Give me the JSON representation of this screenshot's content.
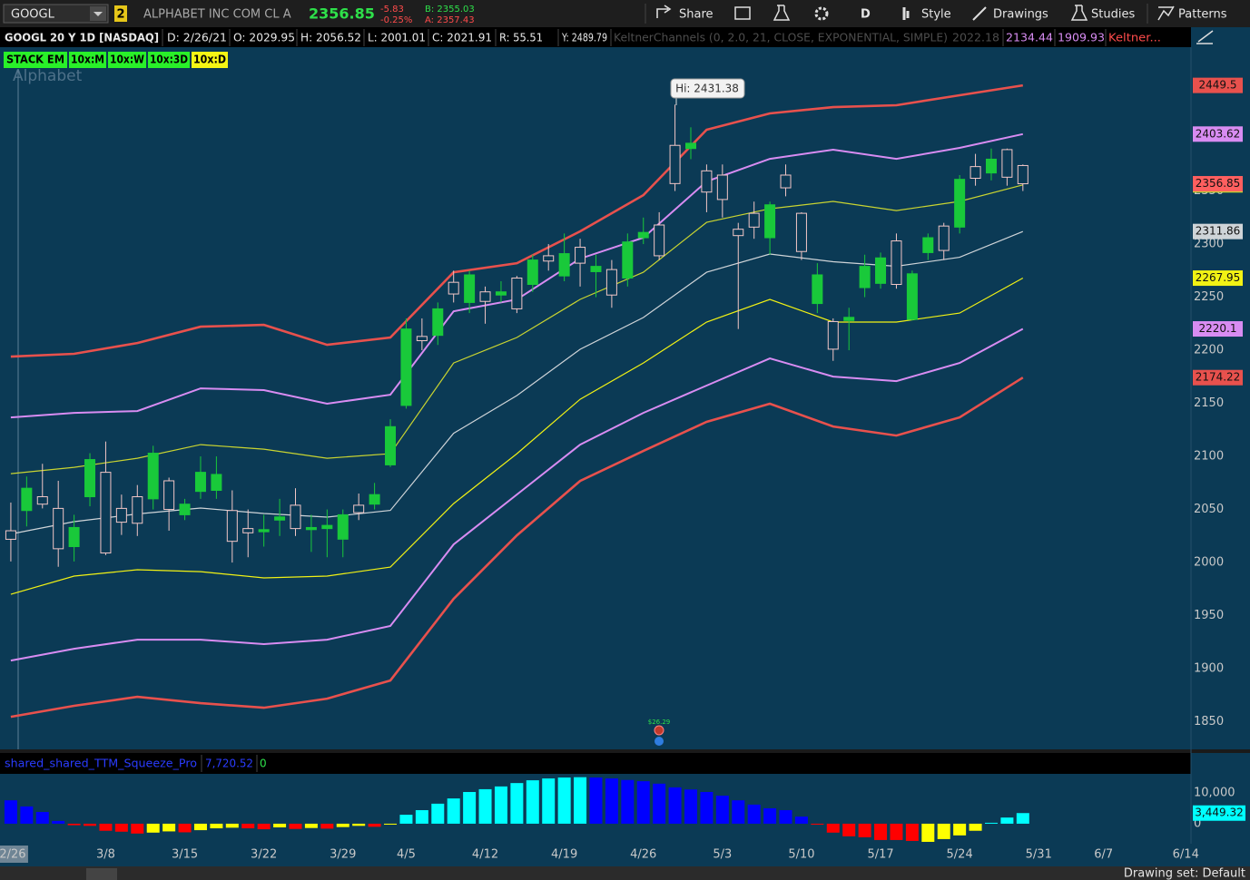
{
  "toolbar": {
    "symbol": "GOOGL",
    "link": "2",
    "company": "ALPHABET INC COM CL A",
    "last": "2356.85",
    "change": "-5.83",
    "change_pct": "-0.25%",
    "bid": "B: 2355.03",
    "ask": "A: 2357.43",
    "buttons": [
      "Share",
      "D",
      "Style",
      "Drawings",
      "Studies",
      "Patterns"
    ]
  },
  "status_bar": {
    "text": "Drawing set: Default"
  },
  "chart_data": [
    {
      "type": "candlestick",
      "title": "GOOGL 20 Y 1D [NASDAQ]",
      "info": [
        "D: 2/26/21",
        "O: 2029.95",
        "H: 2056.52",
        "L: 2001.01",
        "C: 2021.91",
        "R: 55.51",
        "Y: 2489.79"
      ],
      "study": "KeltnerChannels (0, 2.0, 21, CLOSE, EXPONENTIAL, SIMPLE)",
      "study_values": [
        "2022.18",
        "2134.44",
        "1909.93",
        "Keltner..."
      ],
      "study_buttons": [
        "STACK EM",
        "10x:M",
        "10x:W",
        "10x:3D",
        "10x:D"
      ],
      "watermark": "Alphabet",
      "annotation": "Hi: 2431.38",
      "event_label": "$26.29",
      "up_color": "#19c93a",
      "down_color": "#f2c6c6",
      "last_color": "#ff5f5f",
      "x": [
        0,
        1,
        2,
        3,
        4,
        5,
        6,
        7,
        8,
        9,
        10,
        11,
        12,
        13,
        14,
        15,
        16,
        17,
        18,
        19,
        20,
        21,
        22,
        23,
        24,
        25,
        26,
        27,
        28,
        29,
        30,
        31,
        32,
        33,
        34,
        35,
        36,
        37,
        38,
        39,
        40,
        41,
        42,
        43,
        44,
        45,
        46,
        47,
        48,
        49,
        50,
        51,
        52,
        53,
        54,
        55,
        56,
        57,
        58,
        59,
        60,
        61,
        62,
        63,
        64
      ],
      "open": [
        2029.95,
        2049,
        2062,
        2051,
        2015,
        2062,
        2085,
        2051,
        2062,
        2060,
        2077,
        2045,
        2067,
        2068,
        2049,
        2032,
        2029,
        2040,
        2054,
        2031,
        2032,
        2022,
        2054,
        2055,
        2092,
        2148,
        2213,
        2214,
        2264,
        2245,
        2255,
        2252,
        2268,
        2262,
        2289,
        2270,
        2297,
        2274,
        2276,
        2268,
        2306,
        2318,
        2393,
        2390,
        2369,
        2365,
        2314,
        2329,
        2306,
        2365,
        2329,
        2244,
        2227,
        2228,
        2259,
        2263,
        2303,
        2229,
        2292,
        2317,
        2316,
        2373,
        2367,
        2389,
        2374
      ],
      "high": [
        2056.52,
        2081,
        2093,
        2077,
        2045,
        2103,
        2114,
        2064,
        2073,
        2110,
        2080,
        2060,
        2100,
        2100,
        2068,
        2050,
        2045,
        2060,
        2070,
        2045,
        2050,
        2050,
        2065,
        2075,
        2135,
        2230,
        2230,
        2245,
        2275,
        2275,
        2260,
        2265,
        2270,
        2290,
        2300,
        2310,
        2305,
        2290,
        2285,
        2310,
        2325,
        2330,
        2431.38,
        2410,
        2375,
        2375,
        2320,
        2340,
        2340,
        2375,
        2330,
        2282,
        2230,
        2240,
        2290,
        2292,
        2310,
        2275,
        2310,
        2320,
        2365,
        2385,
        2390,
        2390,
        2375
      ],
      "low": [
        2001.01,
        2034,
        2051,
        1996,
        2001,
        2053,
        2007,
        2026,
        2025,
        2050,
        2030,
        2040,
        2060,
        2060,
        2000,
        2005,
        2015,
        2025,
        2025,
        2010,
        2005,
        2005,
        2040,
        2050,
        2090,
        2145,
        2200,
        2205,
        2245,
        2235,
        2225,
        2245,
        2235,
        2255,
        2275,
        2265,
        2260,
        2250,
        2240,
        2260,
        2300,
        2285,
        2350,
        2380,
        2330,
        2325,
        2220,
        2305,
        2290,
        2345,
        2285,
        2235,
        2190,
        2200,
        2250,
        2258,
        2258,
        2228,
        2285,
        2285,
        2310,
        2355,
        2360,
        2355,
        2350
      ],
      "close": [
        2021.91,
        2070,
        2055,
        2013,
        2033,
        2097,
        2009,
        2038,
        2037,
        2103,
        2050,
        2055,
        2085,
        2083,
        2020,
        2028,
        2031,
        2043,
        2032,
        2033,
        2035,
        2045,
        2047,
        2064,
        2128,
        2220,
        2209,
        2239,
        2253,
        2271,
        2246,
        2255,
        2239,
        2285,
        2284,
        2291,
        2282,
        2279,
        2252,
        2302,
        2311,
        2289,
        2357,
        2395,
        2349,
        2342,
        2308,
        2316,
        2337,
        2353,
        2293,
        2271,
        2201,
        2231,
        2279,
        2287,
        2262,
        2272,
        2306,
        2294,
        2361,
        2362,
        2380,
        2363,
        2356.85
      ],
      "series": [
        {
          "color": "#e8514d",
          "x": [
            0,
            4,
            8,
            12,
            16,
            20,
            24,
            28,
            32,
            36,
            40,
            44,
            48,
            52,
            56,
            60,
            64
          ],
          "values": [
            2194,
            2196.6,
            2206.8,
            2222.2,
            2223.9,
            2205.1,
            2212,
            2273.5,
            2282,
            2312,
            2346.1,
            2407.7,
            2423.1,
            2429,
            2430.8,
            2440.2,
            2449.5
          ]
        },
        {
          "color": "#d88cf2",
          "x": [
            0,
            4,
            8,
            12,
            16,
            20,
            24,
            28,
            32,
            36,
            40,
            44,
            48,
            52,
            56,
            60,
            64
          ],
          "values": [
            2136.7,
            2141,
            2142.7,
            2164.1,
            2162.4,
            2149.6,
            2158.1,
            2236.7,
            2247.8,
            2286.3,
            2306,
            2359,
            2380.3,
            2388.9,
            2380.3,
            2390.6,
            2403.62
          ]
        },
        {
          "color": "#c9d431",
          "x": [
            0,
            4,
            8,
            12,
            16,
            20,
            24,
            28,
            32,
            36,
            40,
            44,
            48,
            52,
            56,
            60,
            64
          ],
          "values": [
            2083.7,
            2089.7,
            2098.3,
            2111.1,
            2106.8,
            2098.3,
            2102.5,
            2188,
            2212,
            2247.9,
            2273.5,
            2320.5,
            2333.3,
            2340.2,
            2331.6,
            2340.2,
            2355.77
          ]
        },
        {
          "color": "#cfd4d8",
          "x": [
            0,
            4,
            8,
            12,
            16,
            20,
            24,
            28,
            32,
            36,
            40,
            44,
            48,
            52,
            56,
            60,
            64
          ],
          "values": [
            2026.9,
            2038.5,
            2045.8,
            2051.3,
            2046.2,
            2042.8,
            2049.1,
            2121.8,
            2157.3,
            2200.9,
            2230.8,
            2273.5,
            2290.6,
            2283.4,
            2279.1,
            2287.6,
            2311.86
          ]
        },
        {
          "color": "#f2f214",
          "x": [
            0,
            4,
            8,
            12,
            16,
            20,
            24,
            28,
            32,
            36,
            40,
            44,
            48,
            52,
            56,
            60,
            64
          ],
          "values": [
            1970.1,
            1987.2,
            1993.2,
            1991.4,
            1985.5,
            1987.2,
            1995.7,
            2055.5,
            2102.5,
            2153.8,
            2188,
            2226.5,
            2247.9,
            2226.5,
            2226.5,
            2235,
            2267.95
          ]
        },
        {
          "color": "#d88cf2",
          "x": [
            0,
            4,
            8,
            12,
            16,
            20,
            24,
            28,
            32,
            36,
            40,
            44,
            48,
            52,
            56,
            60,
            64
          ],
          "values": [
            1907.7,
            1918.8,
            1927.3,
            1927.3,
            1923.1,
            1927.3,
            1940.2,
            2017.1,
            2064.1,
            2111.1,
            2141,
            2166.7,
            2192.3,
            2175.2,
            2170.9,
            2188,
            2220.1
          ]
        },
        {
          "color": "#e8514d",
          "x": [
            0,
            4,
            8,
            12,
            16,
            20,
            24,
            28,
            32,
            36,
            40,
            44,
            48,
            52,
            56,
            60,
            64
          ],
          "values": [
            1854.7,
            1865,
            1873.5,
            1867.5,
            1863.2,
            1871.8,
            1888.9,
            1965.8,
            2025.6,
            2076.9,
            2105.1,
            2132.5,
            2149.6,
            2128.2,
            2119.6,
            2136.7,
            2174.22
          ]
        }
      ],
      "xlim": [
        -0.57,
        74.63
      ],
      "ylim": [
        1824,
        2485.5
      ],
      "yticks": [
        1850,
        1900,
        1950,
        2000,
        2050,
        2100,
        2150,
        2200,
        2250,
        2300,
        2350
      ],
      "xticks": [
        {
          "value": 0,
          "label": "2/26"
        },
        {
          "value": 6,
          "label": "3/8"
        },
        {
          "value": 11,
          "label": "3/15"
        },
        {
          "value": 16,
          "label": "3/22"
        },
        {
          "value": 21,
          "label": "3/29"
        },
        {
          "value": 25,
          "label": "4/5"
        },
        {
          "value": 30,
          "label": "4/12"
        },
        {
          "value": 35,
          "label": "4/19"
        },
        {
          "value": 40,
          "label": "4/26"
        },
        {
          "value": 45,
          "label": "5/3"
        },
        {
          "value": 50,
          "label": "5/10"
        },
        {
          "value": 55,
          "label": "5/17"
        },
        {
          "value": 60,
          "label": "5/24"
        },
        {
          "value": 65,
          "label": "5/31"
        },
        {
          "value": 69.1,
          "label": "6/7"
        },
        {
          "value": 74.3,
          "label": "6/14"
        }
      ]
    },
    {
      "type": "bar",
      "title": "shared_shared_TTM_Squeeze_Pro",
      "header_values": [
        "7,720.52",
        "0"
      ],
      "x": [
        0,
        1,
        2,
        3,
        4,
        5,
        6,
        7,
        8,
        9,
        10,
        11,
        12,
        13,
        14,
        15,
        16,
        17,
        18,
        19,
        20,
        21,
        22,
        23,
        24,
        25,
        26,
        27,
        28,
        29,
        30,
        31,
        32,
        33,
        34,
        35,
        36,
        37,
        38,
        39,
        40,
        41,
        42,
        43,
        44,
        45,
        46,
        47,
        48,
        49,
        50,
        51,
        52,
        53,
        54,
        55,
        56,
        57,
        58,
        59,
        60,
        61,
        62,
        63,
        64
      ],
      "values": [
        7600,
        5600,
        3800,
        900,
        -500,
        -700,
        -2300,
        -2600,
        -3200,
        -2900,
        -2500,
        -2800,
        -2100,
        -1500,
        -1300,
        -1500,
        -1800,
        -1200,
        -1700,
        -1400,
        -1600,
        -1100,
        -700,
        -1000,
        -300,
        2900,
        4400,
        6500,
        8200,
        10300,
        11200,
        12100,
        13200,
        14100,
        14700,
        15000,
        15100,
        15000,
        14700,
        14200,
        13800,
        13000,
        11800,
        11100,
        10300,
        9100,
        7600,
        6200,
        5000,
        4400,
        2300,
        -300,
        -2900,
        -4100,
        -4400,
        -5300,
        -5300,
        -5600,
        -5900,
        -5000,
        -3800,
        -2300,
        300,
        2000,
        3449.32
      ],
      "colors": [
        "#0000ff",
        "#0000ff",
        "#0000ff",
        "#0000ff",
        "#ff0000",
        "#ff0000",
        "#ff0000",
        "#ff0000",
        "#ff0000",
        "#ffff00",
        "#ffff00",
        "#ff0000",
        "#ffff00",
        "#ffff00",
        "#ffff00",
        "#ff0000",
        "#ff0000",
        "#ffff00",
        "#ff0000",
        "#ffff00",
        "#ff0000",
        "#ffff00",
        "#ffff00",
        "#ff0000",
        "#ffff00",
        "#00ffff",
        "#00ffff",
        "#00ffff",
        "#00ffff",
        "#00ffff",
        "#00ffff",
        "#00ffff",
        "#00ffff",
        "#00ffff",
        "#00ffff",
        "#00ffff",
        "#00ffff",
        "#0000ff",
        "#0000ff",
        "#0000ff",
        "#0000ff",
        "#0000ff",
        "#0000ff",
        "#0000ff",
        "#0000ff",
        "#0000ff",
        "#0000ff",
        "#0000ff",
        "#0000ff",
        "#0000ff",
        "#0000ff",
        "#ff0000",
        "#ff0000",
        "#ff0000",
        "#ff0000",
        "#ff0000",
        "#ff0000",
        "#ff0000",
        "#ffff00",
        "#ffff00",
        "#ffff00",
        "#ffff00",
        "#00ffff",
        "#00ffff",
        "#00ffff"
      ],
      "last_label": "3,449.32",
      "last_color": "#00ffff",
      "ylim": [
        -6500,
        15600
      ],
      "yticks": [
        {
          "value": 10000,
          "label": "10,000"
        },
        0
      ]
    }
  ]
}
